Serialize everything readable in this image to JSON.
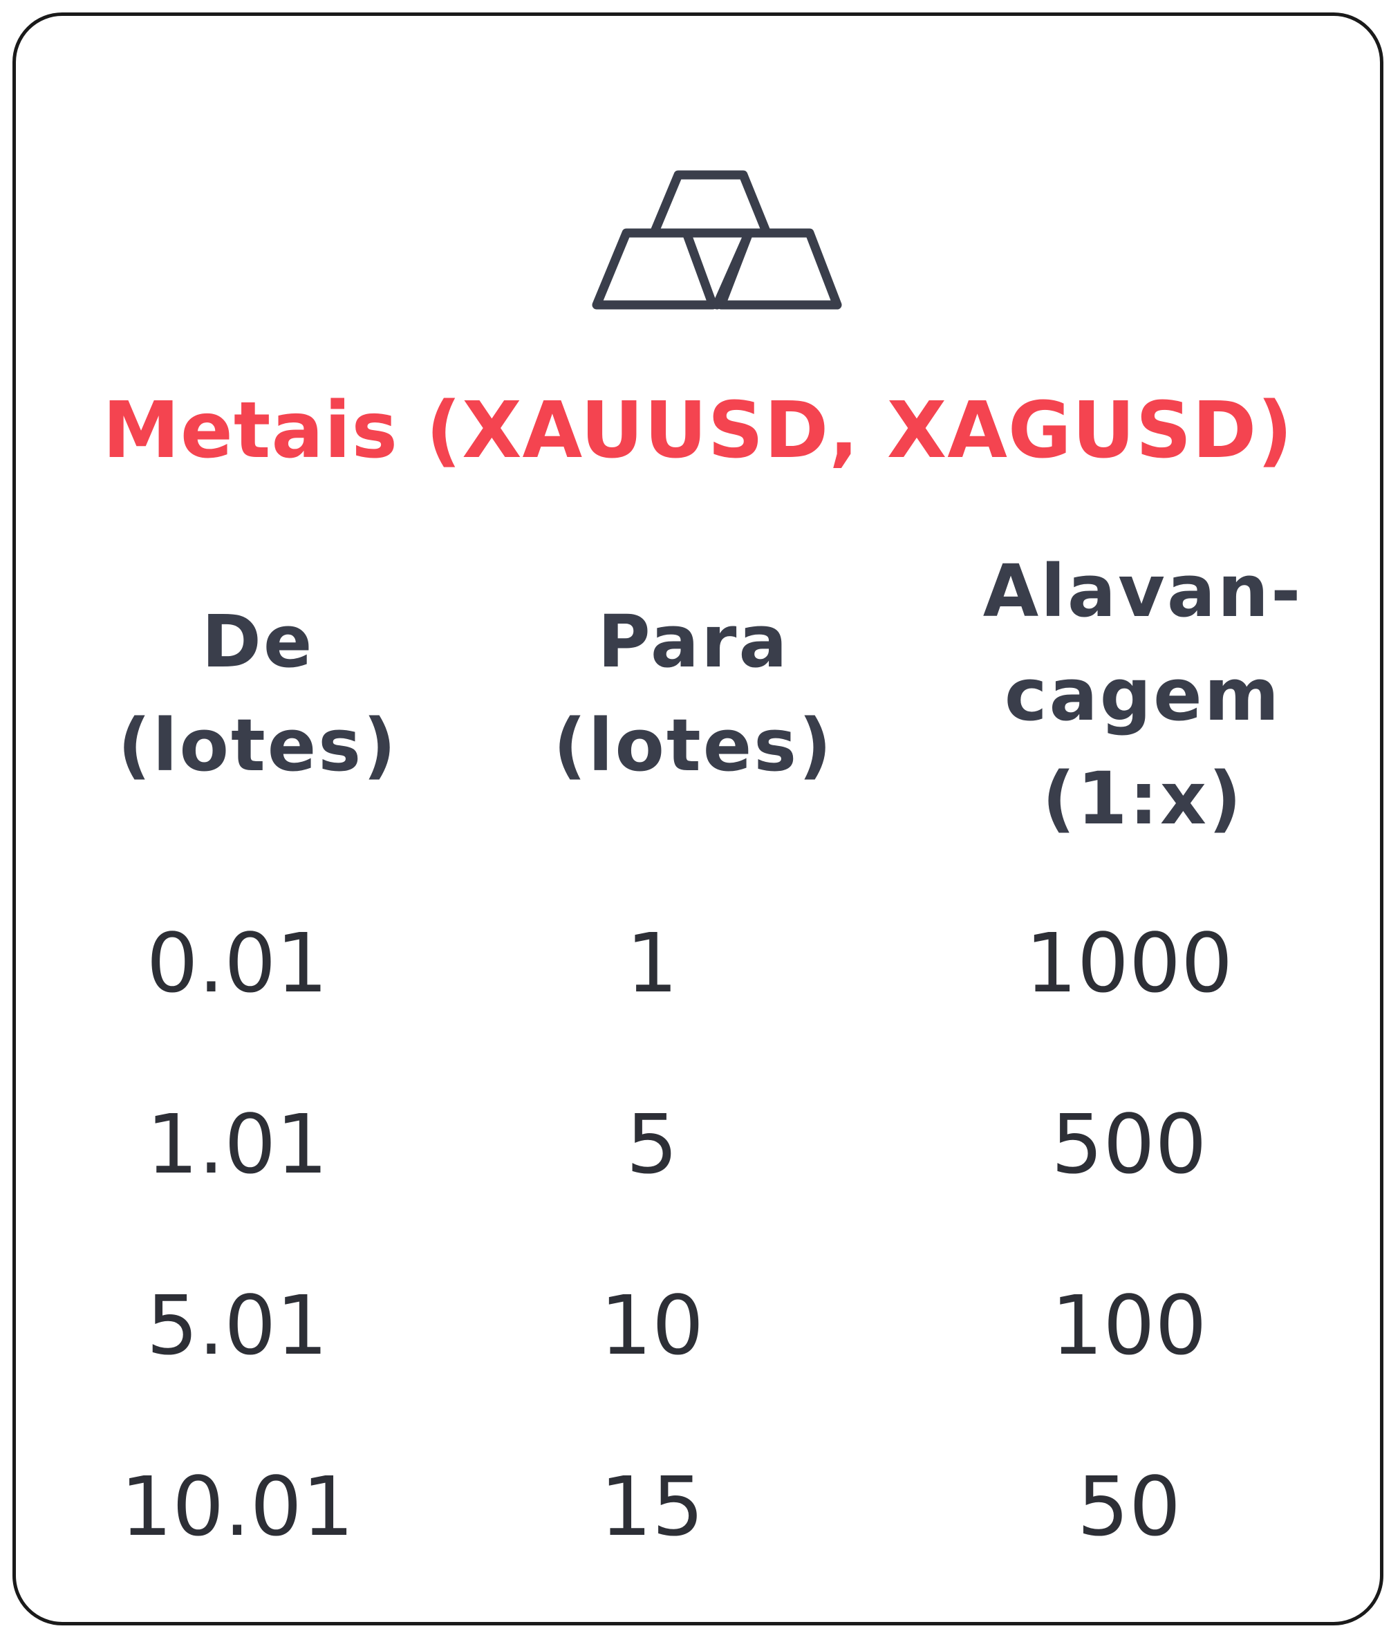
{
  "icon": "gold-bars-icon",
  "title": "Metais (XAUUSD, XAGUSD)",
  "columns": {
    "from_line1": "De",
    "from_line2": "(lotes)",
    "to_line1": "Para",
    "to_line2": "(lotes)",
    "leverage_line1": "Alavan-",
    "leverage_line2": "cagem",
    "leverage_line3": "(1:x)"
  },
  "rows": [
    {
      "from": "0.01",
      "to": "1",
      "leverage": "1000"
    },
    {
      "from": "1.01",
      "to": "5",
      "leverage": "500"
    },
    {
      "from": "5.01",
      "to": "10",
      "leverage": "100"
    },
    {
      "from": "10.01",
      "to": "15",
      "leverage": "50"
    }
  ],
  "colors": {
    "title": "#f44450",
    "text": "#2d2f36",
    "header": "#3a3e4b",
    "border": "#1a1a1a"
  }
}
